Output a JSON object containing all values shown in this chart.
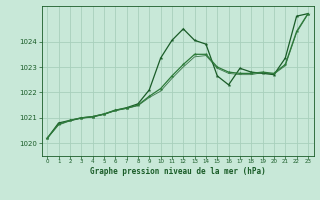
{
  "bg_color": "#c8e8d8",
  "grid_color": "#a8d0bc",
  "line_color_dark": "#1a5c28",
  "line_color_mid": "#2d7a3a",
  "xlabel": "Graphe pression niveau de la mer (hPa)",
  "xlim": [
    -0.5,
    23.5
  ],
  "ylim": [
    1019.5,
    1025.4
  ],
  "yticks": [
    1020,
    1021,
    1022,
    1023,
    1024
  ],
  "xticks": [
    0,
    1,
    2,
    3,
    4,
    5,
    6,
    7,
    8,
    9,
    10,
    11,
    12,
    13,
    14,
    15,
    16,
    17,
    18,
    19,
    20,
    21,
    22,
    23
  ],
  "series1_x": [
    0,
    1,
    2,
    3,
    4,
    5,
    6,
    7,
    8,
    9,
    10,
    11,
    12,
    13,
    14,
    15,
    16,
    17,
    18,
    19,
    20,
    21,
    22,
    23
  ],
  "series1_y": [
    1020.2,
    1020.8,
    1020.9,
    1021.0,
    1021.05,
    1021.15,
    1021.3,
    1021.4,
    1021.55,
    1022.1,
    1023.35,
    1024.05,
    1024.5,
    1024.05,
    1023.9,
    1022.65,
    1022.3,
    1022.95,
    1022.8,
    1022.75,
    1022.7,
    1023.35,
    1025.0,
    1025.1
  ],
  "series2_x": [
    0,
    1,
    2,
    3,
    4,
    5,
    6,
    7,
    8,
    9,
    10,
    11,
    12,
    13,
    14,
    15,
    16,
    17,
    18,
    19,
    20,
    21,
    22,
    23
  ],
  "series2_y": [
    1020.2,
    1020.75,
    1020.9,
    1021.0,
    1021.05,
    1021.15,
    1021.3,
    1021.38,
    1021.5,
    1021.85,
    1022.15,
    1022.65,
    1023.1,
    1023.5,
    1023.5,
    1023.0,
    1022.8,
    1022.75,
    1022.75,
    1022.8,
    1022.75,
    1023.1,
    1024.4,
    1025.1
  ],
  "series3_x": [
    0,
    1,
    2,
    3,
    4,
    5,
    6,
    7,
    8,
    9,
    10,
    11,
    12,
    13,
    14,
    15,
    16,
    17,
    18,
    19,
    20,
    21,
    22,
    23
  ],
  "series3_y": [
    1020.2,
    1020.72,
    1020.88,
    1020.98,
    1021.03,
    1021.13,
    1021.28,
    1021.37,
    1021.48,
    1021.8,
    1022.05,
    1022.55,
    1023.0,
    1023.4,
    1023.45,
    1022.95,
    1022.75,
    1022.7,
    1022.7,
    1022.78,
    1022.72,
    1023.05,
    1024.35,
    1025.08
  ]
}
